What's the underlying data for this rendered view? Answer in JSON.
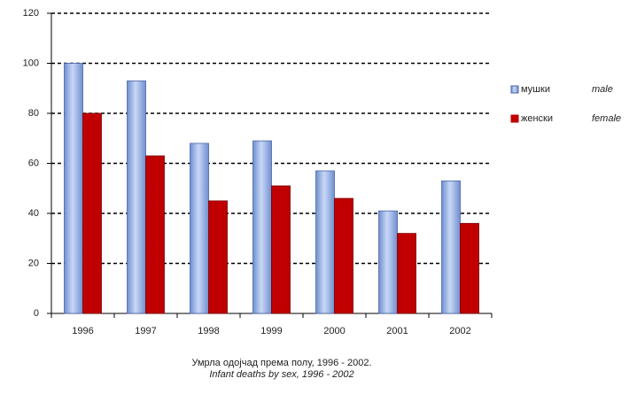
{
  "chart_data": {
    "type": "bar",
    "title": "Умрла одојчад према полу, 1996 - 2002.",
    "subtitle": "Infant deaths by sex, 1996 - 2002",
    "categories": [
      "1996",
      "1997",
      "1998",
      "1999",
      "2000",
      "2001",
      "2002"
    ],
    "series": [
      {
        "name": "мушки",
        "name_alt": "male",
        "color": "#9db8ea",
        "values": [
          100,
          93,
          68,
          69,
          57,
          41,
          53
        ]
      },
      {
        "name": "женски",
        "name_alt": "female",
        "color": "#c00000",
        "values": [
          80,
          63,
          45,
          51,
          46,
          32,
          36
        ]
      }
    ],
    "ylim": [
      0,
      120
    ],
    "yticks": [
      0,
      20,
      40,
      60,
      80,
      100,
      120
    ],
    "grid": true,
    "legend": "right"
  }
}
